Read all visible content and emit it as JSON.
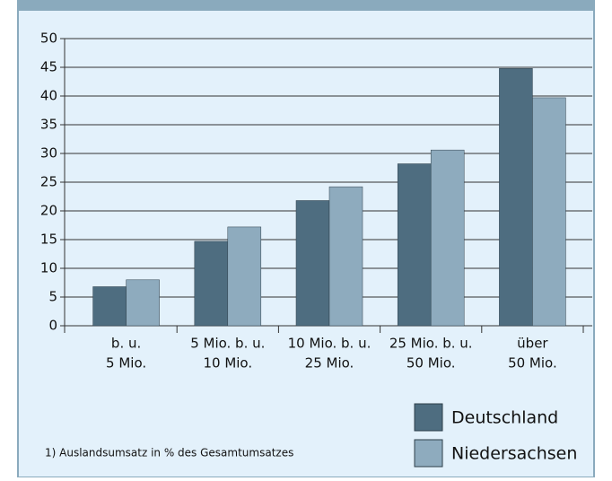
{
  "chart_data": {
    "type": "bar",
    "categories": [
      [
        "b. u.",
        "5 Mio."
      ],
      [
        "5 Mio. b. u.",
        "10 Mio."
      ],
      [
        "10 Mio. b. u.",
        "25 Mio."
      ],
      [
        "25 Mio. b. u.",
        "50 Mio."
      ],
      [
        "über",
        "50 Mio."
      ]
    ],
    "series": [
      {
        "name": "Deutschland",
        "color": "#4e6d80",
        "values": [
          6.8,
          14.7,
          21.8,
          28.2,
          44.8
        ]
      },
      {
        "name": "Niedersachsen",
        "color": "#8eabbe",
        "values": [
          8.0,
          17.2,
          24.2,
          30.6,
          39.7
        ]
      }
    ],
    "ylim": [
      0,
      50
    ],
    "yticks": [
      0,
      5,
      10,
      15,
      20,
      25,
      30,
      35,
      40,
      45,
      50
    ],
    "grid": true,
    "legend": "lower right",
    "note": "1) Auslandsumsatz in % des Gesamtumsatzes"
  }
}
